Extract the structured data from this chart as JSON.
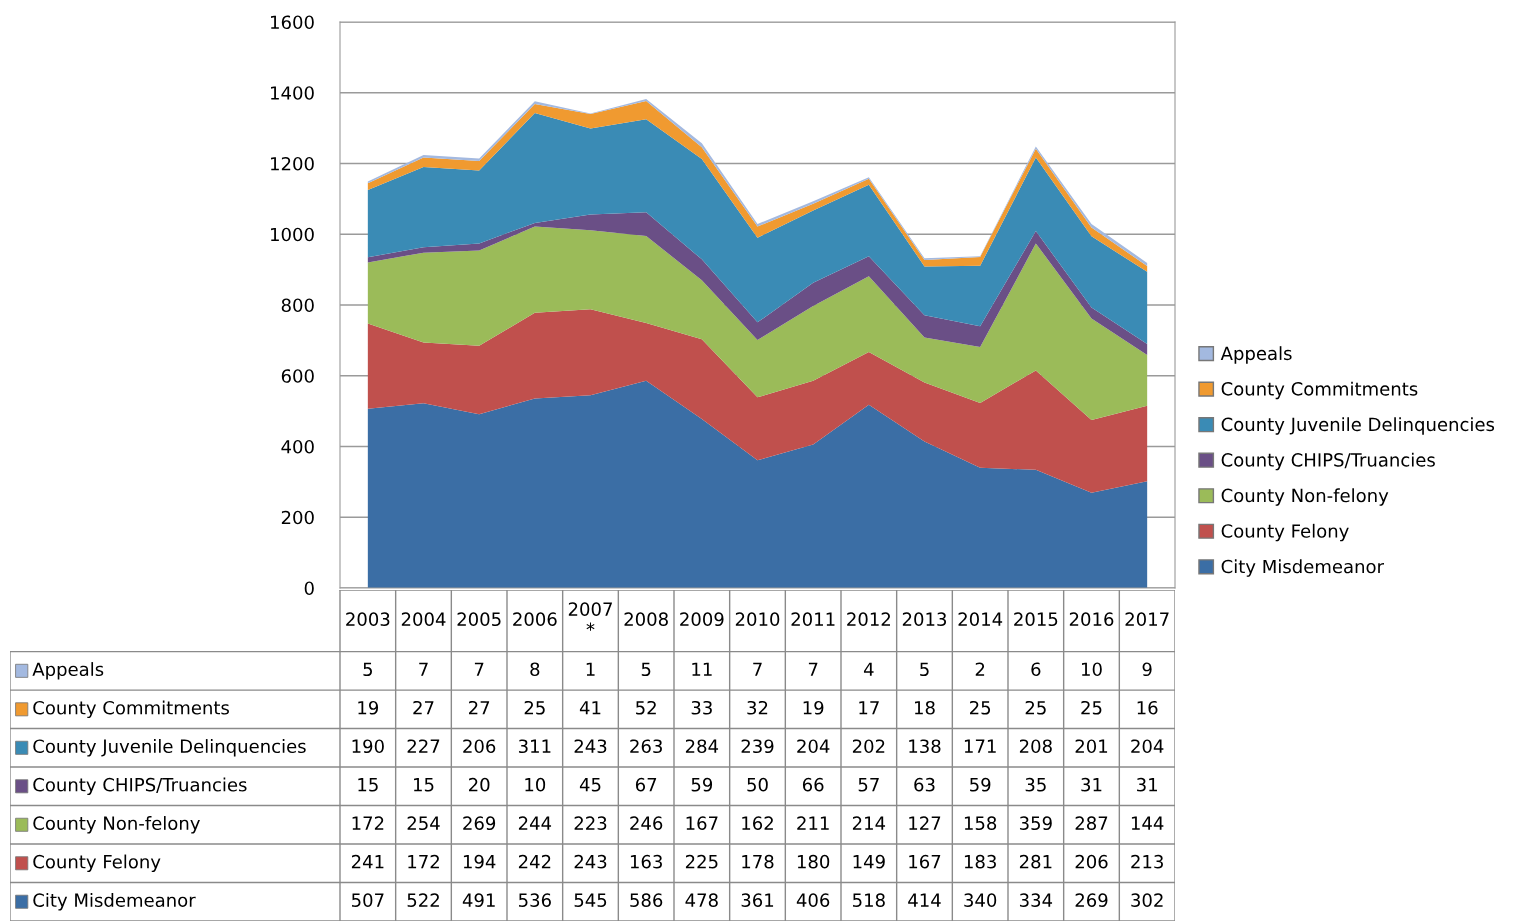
{
  "chart_data": {
    "type": "area",
    "stacked": true,
    "data_labels": true,
    "legend": "right",
    "grid": "y",
    "categories": [
      "2003",
      "2004",
      "2005",
      "2006",
      "2007\n*",
      "2008",
      "2009",
      "2010",
      "2011",
      "2012",
      "2013",
      "2014",
      "2015",
      "2016",
      "2017"
    ],
    "ylim": [
      0,
      1600
    ],
    "yticks": [
      0,
      200,
      400,
      600,
      800,
      1000,
      1200,
      1400,
      1600
    ],
    "series": [
      {
        "name": "City Misdemeanor",
        "color": "#3b6ea5",
        "values": [
          507,
          522,
          491,
          536,
          545,
          586,
          478,
          361,
          406,
          518,
          414,
          340,
          334,
          269,
          302
        ]
      },
      {
        "name": "County Felony",
        "color": "#c0504d",
        "values": [
          241,
          172,
          194,
          242,
          243,
          163,
          225,
          178,
          180,
          149,
          167,
          183,
          281,
          206,
          213
        ]
      },
      {
        "name": "County Non-felony",
        "color": "#9bbb59",
        "values": [
          172,
          254,
          269,
          244,
          223,
          246,
          167,
          162,
          211,
          214,
          127,
          158,
          359,
          287,
          144
        ]
      },
      {
        "name": "County CHIPS/Truancies",
        "color": "#6a4f86",
        "values": [
          15,
          15,
          20,
          10,
          45,
          67,
          59,
          50,
          66,
          57,
          63,
          59,
          35,
          31,
          31
        ]
      },
      {
        "name": "County Juvenile Delinquencies",
        "color": "#3a8bb5",
        "values": [
          190,
          227,
          206,
          311,
          243,
          263,
          284,
          239,
          204,
          202,
          138,
          171,
          208,
          201,
          204
        ]
      },
      {
        "name": "County Commitments",
        "color": "#f09a30",
        "values": [
          19,
          27,
          27,
          25,
          41,
          52,
          33,
          32,
          19,
          17,
          18,
          25,
          25,
          25,
          16
        ]
      },
      {
        "name": "Appeals",
        "color": "#a3b9e0",
        "values": [
          5,
          7,
          7,
          8,
          1,
          5,
          11,
          7,
          7,
          4,
          5,
          2,
          6,
          10,
          9
        ]
      }
    ]
  }
}
